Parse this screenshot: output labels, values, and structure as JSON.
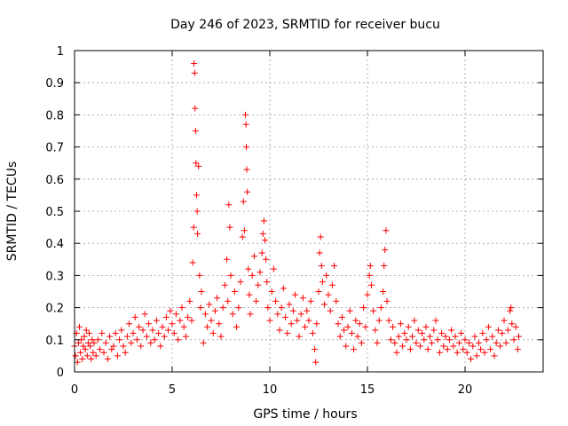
{
  "chart_data": {
    "type": "scatter",
    "title": "Day 246 of 2023, SRMTID for receiver bucu",
    "xlabel": "GPS time / hours",
    "ylabel": "SRMTID / TECUs",
    "xlim": [
      0,
      24
    ],
    "ylim": [
      0,
      1
    ],
    "xticks": [
      0,
      5,
      10,
      15,
      20
    ],
    "xtick_labels": [
      "0",
      "5",
      "10",
      "15",
      "20"
    ],
    "yticks": [
      0,
      0.1,
      0.2,
      0.3,
      0.4,
      0.5,
      0.6,
      0.7,
      0.8,
      0.9,
      1
    ],
    "ytick_labels": [
      "0",
      "0.1",
      "0.2",
      "0.3",
      "0.4",
      "0.5",
      "0.6",
      "0.7",
      "0.8",
      "0.9",
      "1"
    ],
    "grid": true,
    "marker": "+",
    "marker_color": "#ff0000",
    "series": [
      {
        "name": "SRMTID",
        "points": [
          [
            0.0,
            0.08
          ],
          [
            0.05,
            0.05
          ],
          [
            0.1,
            0.12
          ],
          [
            0.15,
            0.03
          ],
          [
            0.2,
            0.09
          ],
          [
            0.25,
            0.14
          ],
          [
            0.3,
            0.06
          ],
          [
            0.35,
            0.1
          ],
          [
            0.4,
            0.04
          ],
          [
            0.45,
            0.08
          ],
          [
            0.5,
            0.11
          ],
          [
            0.55,
            0.07
          ],
          [
            0.6,
            0.13
          ],
          [
            0.65,
            0.05
          ],
          [
            0.7,
            0.09
          ],
          [
            0.75,
            0.12
          ],
          [
            0.8,
            0.08
          ],
          [
            0.85,
            0.04
          ],
          [
            0.9,
            0.1
          ],
          [
            0.95,
            0.06
          ],
          [
            1.0,
            0.09
          ],
          [
            1.1,
            0.05
          ],
          [
            1.2,
            0.1
          ],
          [
            1.3,
            0.07
          ],
          [
            1.4,
            0.12
          ],
          [
            1.5,
            0.06
          ],
          [
            1.6,
            0.09
          ],
          [
            1.7,
            0.04
          ],
          [
            1.8,
            0.11
          ],
          [
            1.9,
            0.07
          ],
          [
            2.0,
            0.08
          ],
          [
            2.1,
            0.12
          ],
          [
            2.2,
            0.05
          ],
          [
            2.3,
            0.1
          ],
          [
            2.4,
            0.13
          ],
          [
            2.5,
            0.08
          ],
          [
            2.6,
            0.06
          ],
          [
            2.7,
            0.11
          ],
          [
            2.8,
            0.15
          ],
          [
            2.9,
            0.09
          ],
          [
            3.0,
            0.12
          ],
          [
            3.1,
            0.17
          ],
          [
            3.2,
            0.1
          ],
          [
            3.3,
            0.14
          ],
          [
            3.4,
            0.08
          ],
          [
            3.5,
            0.13
          ],
          [
            3.6,
            0.18
          ],
          [
            3.7,
            0.11
          ],
          [
            3.8,
            0.15
          ],
          [
            3.9,
            0.09
          ],
          [
            4.0,
            0.13
          ],
          [
            4.1,
            0.1
          ],
          [
            4.2,
            0.16
          ],
          [
            4.3,
            0.12
          ],
          [
            4.4,
            0.08
          ],
          [
            4.5,
            0.14
          ],
          [
            4.6,
            0.11
          ],
          [
            4.7,
            0.17
          ],
          [
            4.8,
            0.13
          ],
          [
            4.9,
            0.19
          ],
          [
            5.0,
            0.15
          ],
          [
            5.1,
            0.12
          ],
          [
            5.2,
            0.18
          ],
          [
            5.3,
            0.1
          ],
          [
            5.4,
            0.16
          ],
          [
            5.5,
            0.2
          ],
          [
            5.6,
            0.14
          ],
          [
            5.7,
            0.11
          ],
          [
            5.8,
            0.17
          ],
          [
            5.9,
            0.22
          ],
          [
            6.0,
            0.16
          ],
          [
            6.05,
            0.34
          ],
          [
            6.1,
            0.45
          ],
          [
            6.12,
            0.96
          ],
          [
            6.15,
            0.93
          ],
          [
            6.17,
            0.82
          ],
          [
            6.2,
            0.75
          ],
          [
            6.22,
            0.65
          ],
          [
            6.25,
            0.55
          ],
          [
            6.28,
            0.5
          ],
          [
            6.3,
            0.43
          ],
          [
            6.35,
            0.64
          ],
          [
            6.4,
            0.3
          ],
          [
            6.45,
            0.2
          ],
          [
            6.5,
            0.25
          ],
          [
            6.6,
            0.09
          ],
          [
            6.7,
            0.18
          ],
          [
            6.8,
            0.14
          ],
          [
            6.9,
            0.21
          ],
          [
            7.0,
            0.16
          ],
          [
            7.1,
            0.12
          ],
          [
            7.2,
            0.19
          ],
          [
            7.3,
            0.23
          ],
          [
            7.4,
            0.15
          ],
          [
            7.5,
            0.11
          ],
          [
            7.6,
            0.2
          ],
          [
            7.7,
            0.27
          ],
          [
            7.8,
            0.35
          ],
          [
            7.85,
            0.22
          ],
          [
            7.9,
            0.52
          ],
          [
            7.95,
            0.45
          ],
          [
            8.0,
            0.3
          ],
          [
            8.1,
            0.18
          ],
          [
            8.2,
            0.25
          ],
          [
            8.3,
            0.14
          ],
          [
            8.4,
            0.2
          ],
          [
            8.5,
            0.28
          ],
          [
            8.6,
            0.42
          ],
          [
            8.65,
            0.53
          ],
          [
            8.7,
            0.44
          ],
          [
            8.75,
            0.8
          ],
          [
            8.78,
            0.77
          ],
          [
            8.8,
            0.7
          ],
          [
            8.82,
            0.63
          ],
          [
            8.85,
            0.56
          ],
          [
            8.9,
            0.32
          ],
          [
            8.95,
            0.24
          ],
          [
            9.0,
            0.18
          ],
          [
            9.1,
            0.3
          ],
          [
            9.2,
            0.36
          ],
          [
            9.3,
            0.22
          ],
          [
            9.4,
            0.27
          ],
          [
            9.5,
            0.31
          ],
          [
            9.6,
            0.37
          ],
          [
            9.65,
            0.43
          ],
          [
            9.7,
            0.47
          ],
          [
            9.75,
            0.41
          ],
          [
            9.8,
            0.35
          ],
          [
            9.85,
            0.28
          ],
          [
            9.9,
            0.2
          ],
          [
            10.0,
            0.16
          ],
          [
            10.1,
            0.25
          ],
          [
            10.2,
            0.32
          ],
          [
            10.3,
            0.22
          ],
          [
            10.4,
            0.18
          ],
          [
            10.5,
            0.13
          ],
          [
            10.6,
            0.2
          ],
          [
            10.7,
            0.26
          ],
          [
            10.8,
            0.17
          ],
          [
            10.9,
            0.12
          ],
          [
            11.0,
            0.21
          ],
          [
            11.1,
            0.15
          ],
          [
            11.2,
            0.19
          ],
          [
            11.3,
            0.24
          ],
          [
            11.4,
            0.16
          ],
          [
            11.5,
            0.11
          ],
          [
            11.6,
            0.18
          ],
          [
            11.7,
            0.23
          ],
          [
            11.8,
            0.14
          ],
          [
            11.9,
            0.19
          ],
          [
            12.0,
            0.16
          ],
          [
            12.1,
            0.22
          ],
          [
            12.2,
            0.12
          ],
          [
            12.3,
            0.07
          ],
          [
            12.35,
            0.03
          ],
          [
            12.4,
            0.15
          ],
          [
            12.5,
            0.25
          ],
          [
            12.55,
            0.37
          ],
          [
            12.6,
            0.42
          ],
          [
            12.65,
            0.33
          ],
          [
            12.7,
            0.28
          ],
          [
            12.8,
            0.21
          ],
          [
            12.9,
            0.3
          ],
          [
            13.0,
            0.24
          ],
          [
            13.1,
            0.19
          ],
          [
            13.2,
            0.27
          ],
          [
            13.3,
            0.33
          ],
          [
            13.4,
            0.22
          ],
          [
            13.5,
            0.15
          ],
          [
            13.6,
            0.11
          ],
          [
            13.7,
            0.17
          ],
          [
            13.8,
            0.13
          ],
          [
            13.9,
            0.08
          ],
          [
            14.0,
            0.14
          ],
          [
            14.1,
            0.19
          ],
          [
            14.2,
            0.12
          ],
          [
            14.3,
            0.07
          ],
          [
            14.4,
            0.16
          ],
          [
            14.5,
            0.11
          ],
          [
            14.6,
            0.15
          ],
          [
            14.7,
            0.09
          ],
          [
            14.8,
            0.2
          ],
          [
            14.9,
            0.14
          ],
          [
            15.0,
            0.24
          ],
          [
            15.1,
            0.3
          ],
          [
            15.15,
            0.33
          ],
          [
            15.2,
            0.27
          ],
          [
            15.3,
            0.19
          ],
          [
            15.4,
            0.13
          ],
          [
            15.5,
            0.09
          ],
          [
            15.6,
            0.16
          ],
          [
            15.7,
            0.2
          ],
          [
            15.8,
            0.25
          ],
          [
            15.85,
            0.33
          ],
          [
            15.9,
            0.38
          ],
          [
            15.95,
            0.44
          ],
          [
            16.0,
            0.22
          ],
          [
            16.1,
            0.16
          ],
          [
            16.2,
            0.1
          ],
          [
            16.3,
            0.14
          ],
          [
            16.4,
            0.09
          ],
          [
            16.5,
            0.06
          ],
          [
            16.6,
            0.11
          ],
          [
            16.7,
            0.15
          ],
          [
            16.8,
            0.08
          ],
          [
            16.9,
            0.12
          ],
          [
            17.0,
            0.1
          ],
          [
            17.1,
            0.14
          ],
          [
            17.2,
            0.07
          ],
          [
            17.3,
            0.11
          ],
          [
            17.4,
            0.16
          ],
          [
            17.5,
            0.09
          ],
          [
            17.6,
            0.13
          ],
          [
            17.7,
            0.08
          ],
          [
            17.8,
            0.12
          ],
          [
            17.9,
            0.1
          ],
          [
            18.0,
            0.14
          ],
          [
            18.1,
            0.07
          ],
          [
            18.2,
            0.11
          ],
          [
            18.3,
            0.09
          ],
          [
            18.4,
            0.13
          ],
          [
            18.5,
            0.16
          ],
          [
            18.6,
            0.1
          ],
          [
            18.7,
            0.06
          ],
          [
            18.8,
            0.12
          ],
          [
            18.9,
            0.08
          ],
          [
            19.0,
            0.11
          ],
          [
            19.1,
            0.07
          ],
          [
            19.2,
            0.1
          ],
          [
            19.3,
            0.13
          ],
          [
            19.4,
            0.08
          ],
          [
            19.5,
            0.11
          ],
          [
            19.6,
            0.06
          ],
          [
            19.7,
            0.09
          ],
          [
            19.8,
            0.12
          ],
          [
            19.9,
            0.07
          ],
          [
            20.0,
            0.1
          ],
          [
            20.1,
            0.06
          ],
          [
            20.2,
            0.09
          ],
          [
            20.3,
            0.04
          ],
          [
            20.4,
            0.08
          ],
          [
            20.5,
            0.11
          ],
          [
            20.6,
            0.05
          ],
          [
            20.7,
            0.09
          ],
          [
            20.8,
            0.07
          ],
          [
            20.9,
            0.12
          ],
          [
            21.0,
            0.06
          ],
          [
            21.1,
            0.1
          ],
          [
            21.2,
            0.14
          ],
          [
            21.3,
            0.07
          ],
          [
            21.4,
            0.11
          ],
          [
            21.5,
            0.05
          ],
          [
            21.6,
            0.09
          ],
          [
            21.7,
            0.13
          ],
          [
            21.8,
            0.08
          ],
          [
            21.9,
            0.12
          ],
          [
            22.0,
            0.16
          ],
          [
            22.1,
            0.09
          ],
          [
            22.2,
            0.13
          ],
          [
            22.3,
            0.19
          ],
          [
            22.35,
            0.2
          ],
          [
            22.4,
            0.15
          ],
          [
            22.5,
            0.1
          ],
          [
            22.6,
            0.14
          ],
          [
            22.7,
            0.07
          ],
          [
            22.75,
            0.11
          ]
        ]
      }
    ]
  }
}
